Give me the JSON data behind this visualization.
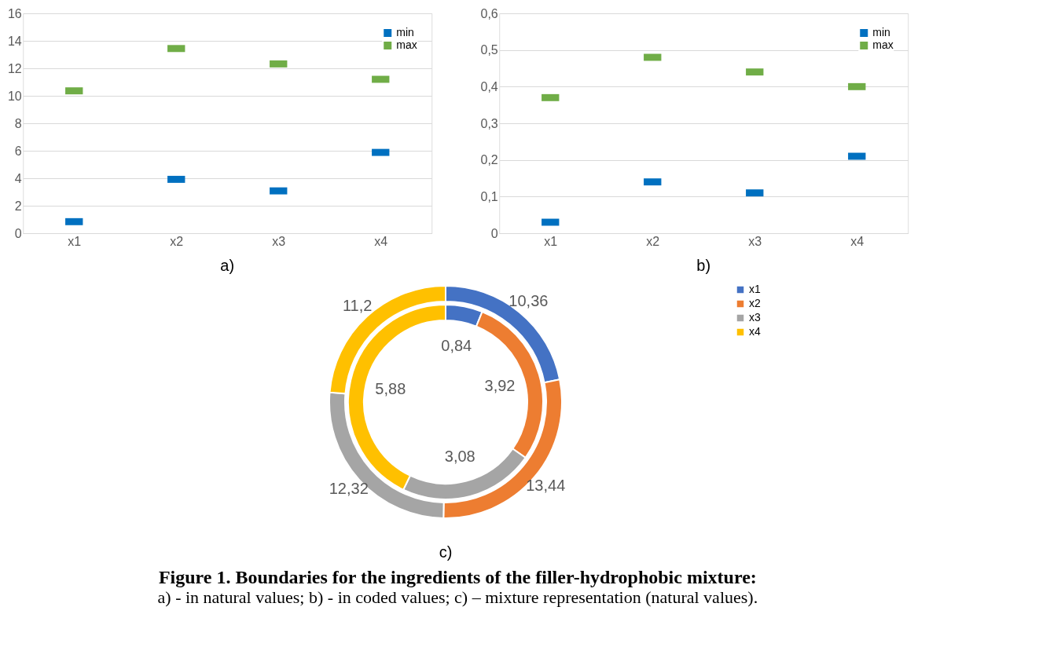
{
  "chart_data": [
    {
      "type": "scatter",
      "categories": [
        "x1",
        "x2",
        "x3",
        "x4"
      ],
      "series": [
        {
          "name": "min",
          "color": "#0070c0",
          "values": [
            0.84,
            3.92,
            3.08,
            5.88
          ]
        },
        {
          "name": "max",
          "color": "#70ad47",
          "values": [
            10.36,
            13.44,
            12.32,
            11.2
          ]
        }
      ],
      "ylim": [
        0,
        16
      ],
      "yticks": [
        0,
        2,
        4,
        6,
        8,
        10,
        12,
        14,
        16
      ],
      "grid": "y",
      "legend": "top right",
      "annotations": [
        "a)"
      ]
    },
    {
      "type": "scatter",
      "categories": [
        "x1",
        "x2",
        "x3",
        "x4"
      ],
      "series": [
        {
          "name": "min",
          "color": "#0070c0",
          "values": [
            0.03,
            0.14,
            0.11,
            0.21
          ]
        },
        {
          "name": "max",
          "color": "#70ad47",
          "values": [
            0.37,
            0.48,
            0.44,
            0.4
          ]
        }
      ],
      "ylim": [
        0,
        0.6
      ],
      "yticks": [
        0,
        {
          "value": 0.1,
          "label": "0,1"
        },
        {
          "value": 0.2,
          "label": "0,2"
        },
        {
          "value": 0.3,
          "label": "0,3"
        },
        {
          "value": 0.4,
          "label": "0,4"
        },
        {
          "value": 0.5,
          "label": "0,5"
        },
        {
          "value": 0.6,
          "label": "0,6"
        }
      ],
      "grid": "y",
      "legend": "top right",
      "annotations": [
        "b)"
      ]
    },
    {
      "type": "donut",
      "categories": [
        "x1",
        "x2",
        "x3",
        "x4"
      ],
      "colors": [
        "#4472c4",
        "#ed7d31",
        "#a5a5a5",
        "#ffc000"
      ],
      "series": [
        {
          "values": [
            10.36,
            13.44,
            12.32,
            11.2
          ],
          "value_labels": [
            "10,36",
            "13,44",
            "12,32",
            "11,2"
          ]
        },
        {
          "values": [
            0.84,
            3.92,
            3.08,
            5.88
          ],
          "value_labels": [
            "0,84",
            "3,92",
            "3,08",
            "5,88"
          ]
        }
      ],
      "legend": "right",
      "annotations": [
        "c)"
      ],
      "title": "Figure 1. Boundaries for the ingredients of the filler-hydrophobic mixture:",
      "subtitle": "a) - in natural values; b) - in coded values; c) – mixture representation (natural values)."
    }
  ]
}
